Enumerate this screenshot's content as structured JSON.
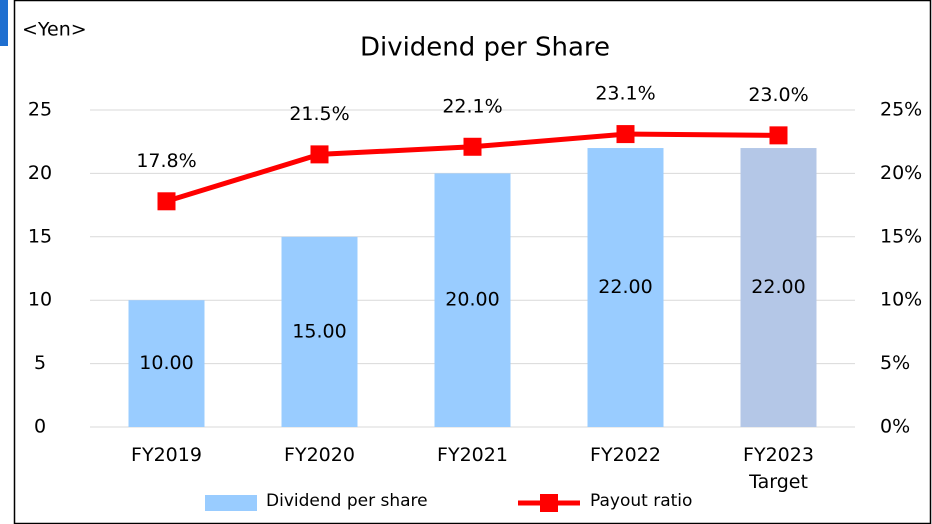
{
  "chart_data": {
    "type": "bar_line",
    "title": "Dividend per Share",
    "y_label": "<Yen>",
    "categories": [
      "FY2019",
      "FY2020",
      "FY2021",
      "FY2022",
      "FY2023 Target"
    ],
    "series": [
      {
        "name": "Dividend per share",
        "type": "bar",
        "color": "#99ccff",
        "colors": [
          "#99ccff",
          "#99ccff",
          "#99ccff",
          "#99ccff",
          "#b4c7e7"
        ],
        "values": [
          10,
          15,
          20,
          22,
          22
        ],
        "value_labels": [
          "10.00",
          "15.00",
          "20.00",
          "22.00",
          "22.00"
        ]
      },
      {
        "name": "Payout ratio",
        "type": "line",
        "axis": "y2",
        "color": "#ff0000",
        "values": [
          17.8,
          21.5,
          22.1,
          23.1,
          23.0
        ],
        "value_labels": [
          "17.8%",
          "21.5%",
          "22.1%",
          "23.1%",
          "23.0%"
        ]
      }
    ],
    "ylim": [
      0,
      25
    ],
    "yticks": [
      0,
      5,
      10,
      15,
      20,
      25
    ],
    "y2lim": [
      0,
      25
    ],
    "y2ticks": [
      {
        "value": 0,
        "label": "0%"
      },
      {
        "value": 5,
        "label": "5%"
      },
      {
        "value": 10,
        "label": "10%"
      },
      {
        "value": 15,
        "label": "15%"
      },
      {
        "value": 20,
        "label": "20%"
      },
      {
        "value": 25,
        "label": "25%"
      }
    ],
    "grid": true,
    "legend": "bottom"
  }
}
